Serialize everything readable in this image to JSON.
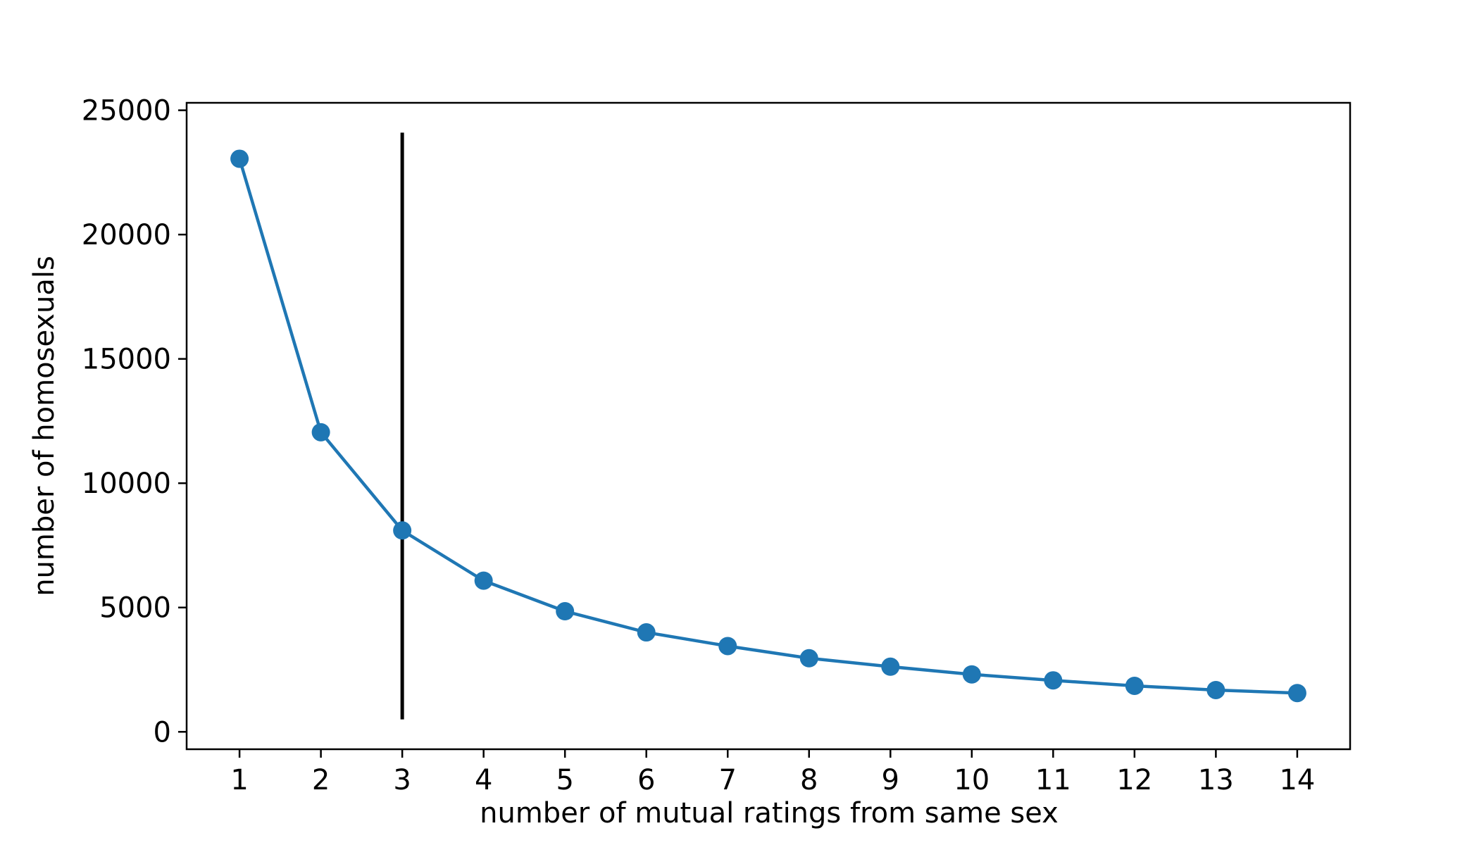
{
  "chart_data": {
    "type": "line",
    "xlabel": "number of mutual ratings from same sex",
    "ylabel": "number of homosexuals",
    "x": [
      1,
      2,
      3,
      4,
      5,
      6,
      7,
      8,
      9,
      10,
      11,
      12,
      13,
      14
    ],
    "x_tick_labels": [
      "1",
      "2",
      "3",
      "4",
      "5",
      "6",
      "7",
      "8",
      "9",
      "10",
      "11",
      "12",
      "13",
      "14"
    ],
    "y_ticks": [
      0,
      5000,
      10000,
      15000,
      20000,
      25000
    ],
    "y_tick_labels": [
      "0",
      "5000",
      "10000",
      "15000",
      "20000",
      "25000"
    ],
    "xlim": [
      0.35,
      14.65
    ],
    "ylim": [
      -700,
      25300
    ],
    "grid": false,
    "series": [
      {
        "values": [
          23050,
          12050,
          8100,
          6080,
          4850,
          4000,
          3450,
          2960,
          2620,
          2310,
          2070,
          1850,
          1680,
          1560
        ],
        "color": "#1f77b4",
        "marker": "circle"
      }
    ],
    "vertical_line": {
      "x": 3,
      "y_range": [
        500,
        24100
      ],
      "color": "#000000"
    }
  }
}
